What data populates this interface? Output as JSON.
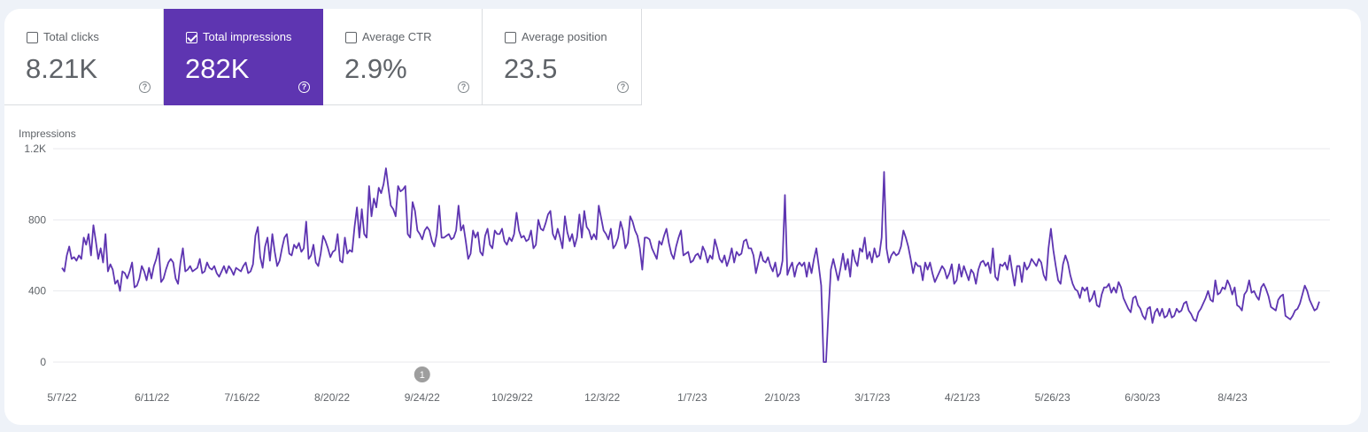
{
  "metrics": [
    {
      "label": "Total clicks",
      "value": "8.21K",
      "selected": false
    },
    {
      "label": "Total impressions",
      "value": "282K",
      "selected": true
    },
    {
      "label": "Average CTR",
      "value": "2.9%",
      "selected": false
    },
    {
      "label": "Average position",
      "value": "23.5",
      "selected": false
    }
  ],
  "colors": {
    "accent": "#5e35b1",
    "line": "#5e35b1",
    "grid": "#e8eaed",
    "annotation": "#9e9e9e"
  },
  "chart_data": {
    "type": "line",
    "ylabel": "Impressions",
    "y_tick_labels": [
      "0",
      "400",
      "800",
      "1.2K"
    ],
    "y_ticks": [
      0,
      400,
      800,
      1200
    ],
    "ylim": [
      0,
      1200
    ],
    "x_tick_labels": [
      "5/7/22",
      "6/11/22",
      "7/16/22",
      "8/20/22",
      "9/24/22",
      "10/29/22",
      "12/3/22",
      "1/7/23",
      "2/10/23",
      "3/17/23",
      "4/21/23",
      "5/26/23",
      "6/30/23",
      "8/4/23"
    ],
    "grid": true,
    "annotation": {
      "label": "1",
      "date": "9/24/22"
    },
    "series": [
      {
        "values": [
          530,
          510,
          600,
          650,
          580,
          590,
          570,
          600,
          580,
          700,
          660,
          720,
          600,
          770,
          680,
          580,
          640,
          560,
          720,
          510,
          550,
          520,
          440,
          460,
          400,
          510,
          500,
          470,
          510,
          560,
          420,
          430,
          470,
          540,
          510,
          460,
          530,
          470,
          540,
          580,
          640,
          450,
          470,
          520,
          560,
          580,
          560,
          470,
          440,
          560,
          640,
          510,
          520,
          540,
          510,
          520,
          530,
          580,
          500,
          510,
          560,
          530,
          520,
          540,
          500,
          480,
          510,
          540,
          500,
          540,
          520,
          490,
          530,
          520,
          510,
          540,
          560,
          500,
          510,
          550,
          710,
          760,
          590,
          530,
          650,
          700,
          570,
          720,
          620,
          540,
          570,
          640,
          700,
          720,
          610,
          600,
          660,
          640,
          670,
          620,
          640,
          790,
          580,
          600,
          660,
          560,
          540,
          610,
          710,
          680,
          640,
          590,
          620,
          630,
          720,
          570,
          560,
          700,
          610,
          630,
          620,
          760,
          870,
          700,
          860,
          720,
          700,
          990,
          820,
          920,
          870,
          980,
          950,
          1000,
          1090,
          980,
          880,
          860,
          820,
          990,
          960,
          970,
          990,
          720,
          700,
          900,
          850,
          740,
          720,
          690,
          740,
          760,
          740,
          680,
          650,
          720,
          880,
          700,
          700,
          710,
          720,
          690,
          700,
          740,
          880,
          740,
          770,
          680,
          580,
          610,
          740,
          700,
          730,
          620,
          600,
          710,
          750,
          660,
          640,
          740,
          720,
          720,
          750,
          680,
          660,
          700,
          680,
          720,
          840,
          740,
          700,
          710,
          680,
          690,
          740,
          640,
          660,
          800,
          750,
          740,
          780,
          830,
          850,
          720,
          690,
          750,
          700,
          640,
          820,
          730,
          680,
          720,
          650,
          700,
          830,
          700,
          850,
          760,
          740,
          690,
          720,
          690,
          880,
          810,
          740,
          720,
          690,
          750,
          640,
          660,
          700,
          790,
          740,
          640,
          670,
          820,
          790,
          740,
          710,
          640,
          520,
          700,
          700,
          690,
          640,
          610,
          580,
          680,
          660,
          710,
          750,
          670,
          610,
          580,
          650,
          700,
          740,
          600,
          610,
          620,
          560,
          570,
          600,
          610,
          580,
          650,
          620,
          560,
          600,
          580,
          690,
          640,
          580,
          560,
          600,
          540,
          580,
          640,
          560,
          620,
          600,
          610,
          680,
          690,
          640,
          640,
          600,
          500,
          560,
          620,
          570,
          560,
          590,
          540,
          510,
          560,
          480,
          500,
          570,
          940,
          490,
          530,
          560,
          480,
          540,
          560,
          540,
          560,
          480,
          560,
          500,
          580,
          640,
          540,
          430,
          0,
          0,
          280,
          520,
          580,
          520,
          460,
          530,
          610,
          520,
          580,
          480,
          630,
          570,
          540,
          640,
          620,
          700,
          580,
          620,
          560,
          640,
          590,
          600,
          700,
          1070,
          640,
          560,
          600,
          620,
          600,
          610,
          650,
          740,
          700,
          650,
          580,
          500,
          560,
          540,
          540,
          460,
          560,
          520,
          560,
          500,
          450,
          480,
          510,
          540,
          520,
          470,
          500,
          550,
          440,
          460,
          550,
          480,
          540,
          500,
          460,
          520,
          500,
          440,
          520,
          560,
          570,
          540,
          560,
          500,
          640,
          480,
          460,
          550,
          540,
          560,
          520,
          600,
          510,
          430,
          540,
          540,
          450,
          560,
          520,
          540,
          580,
          560,
          540,
          580,
          560,
          490,
          460,
          640,
          750,
          630,
          540,
          460,
          440,
          550,
          600,
          560,
          490,
          440,
          410,
          400,
          360,
          420,
          400,
          420,
          340,
          360,
          400,
          320,
          310,
          380,
          420,
          420,
          440,
          390,
          420,
          390,
          450,
          420,
          360,
          330,
          300,
          280,
          360,
          370,
          320,
          300,
          260,
          240,
          300,
          310,
          220,
          280,
          300,
          260,
          300,
          250,
          260,
          300,
          250,
          260,
          300,
          280,
          290,
          330,
          340,
          290,
          270,
          240,
          230,
          280,
          300,
          330,
          360,
          400,
          350,
          340,
          460,
          380,
          390,
          420,
          410,
          460,
          430,
          380,
          420,
          320,
          310,
          290,
          380,
          400,
          460,
          390,
          400,
          370,
          350,
          420,
          440,
          410,
          370,
          310,
          300,
          290,
          350,
          370,
          380,
          260,
          250,
          240,
          260,
          290,
          300,
          330,
          380,
          430,
          400,
          350,
          320,
          290,
          300,
          340
        ]
      }
    ]
  }
}
